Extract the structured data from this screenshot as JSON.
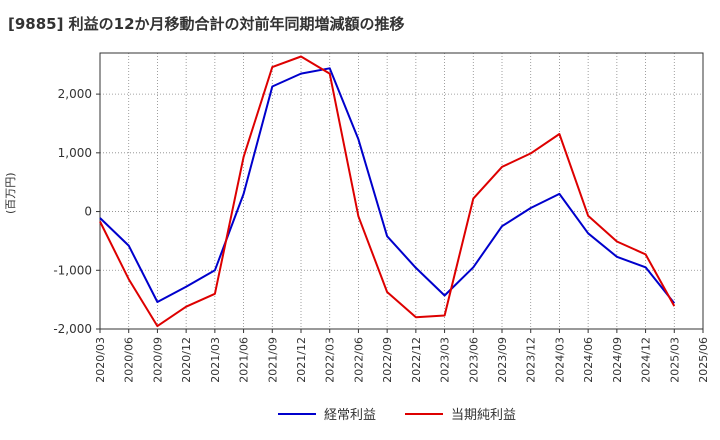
{
  "title": "[9885]  利益の12か月移動合計の対前年同期増減額の推移",
  "colors": {
    "series1": "#0000cc",
    "series2": "#dd0000",
    "grid": "#888888",
    "axis": "#333333"
  },
  "chart_data": {
    "type": "line",
    "title": "[9885]  利益の12か月移動合計の対前年同期増減額の推移",
    "xlabel": "",
    "ylabel": "(百万円)",
    "ylim": [
      -2000,
      2700
    ],
    "y_ticks": [
      2000,
      1000,
      0,
      -1000,
      -2000
    ],
    "y_tick_labels": [
      "2,000",
      "1,000",
      "0",
      "-1,000",
      "-2,000"
    ],
    "categories": [
      "2020/03",
      "2020/06",
      "2020/09",
      "2020/12",
      "2021/03",
      "2021/06",
      "2021/09",
      "2021/12",
      "2022/03",
      "2022/06",
      "2022/09",
      "2022/12",
      "2023/03",
      "2023/06",
      "2023/09",
      "2023/12",
      "2024/03",
      "2024/06",
      "2024/09",
      "2024/12",
      "2025/03",
      "2025/06"
    ],
    "series": [
      {
        "name": "経常利益",
        "color": "#0000cc",
        "values": [
          -110,
          -580,
          -1540,
          -1280,
          -1000,
          300,
          2130,
          2350,
          2440,
          1230,
          -420,
          -960,
          -1430,
          -950,
          -250,
          60,
          300,
          -370,
          -770,
          -950,
          -1560,
          null
        ]
      },
      {
        "name": "当期純利益",
        "color": "#dd0000",
        "values": [
          -170,
          -1150,
          -1950,
          -1620,
          -1400,
          930,
          2460,
          2640,
          2350,
          -80,
          -1370,
          -1800,
          -1770,
          220,
          760,
          990,
          1320,
          -70,
          -510,
          -730,
          -1610,
          null
        ]
      }
    ],
    "grid": true,
    "legend": "bottom-center"
  }
}
